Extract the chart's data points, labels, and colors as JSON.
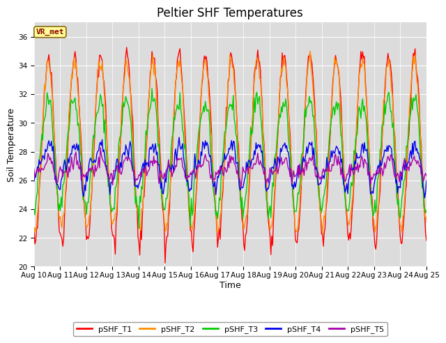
{
  "title": "Peltier SHF Temperatures",
  "xlabel": "Time",
  "ylabel": "Soil Temperature",
  "ylim": [
    20,
    37
  ],
  "yticks": [
    20,
    22,
    24,
    26,
    28,
    30,
    32,
    34,
    36
  ],
  "background_color": "#dcdcdc",
  "figure_bg": "#ffffff",
  "annotation_text": "VR_met",
  "annotation_bg": "#ffff99",
  "annotation_border": "#8b6914",
  "annotation_text_color": "#8b0000",
  "series": [
    {
      "label": "pSHF_T1",
      "color": "#ff0000"
    },
    {
      "label": "pSHF_T2",
      "color": "#ff8c00"
    },
    {
      "label": "pSHF_T3",
      "color": "#00cc00"
    },
    {
      "label": "pSHF_T4",
      "color": "#0000ee"
    },
    {
      "label": "pSHF_T5",
      "color": "#aa00aa"
    }
  ],
  "xtick_labels": [
    "Aug 10",
    "Aug 11",
    "Aug 12",
    "Aug 13",
    "Aug 14",
    "Aug 15",
    "Aug 16",
    "Aug 17",
    "Aug 18",
    "Aug 19",
    "Aug 20",
    "Aug 21",
    "Aug 22",
    "Aug 23",
    "Aug 24",
    "Aug 25"
  ],
  "title_fontsize": 12,
  "axis_fontsize": 9,
  "tick_fontsize": 7.5,
  "legend_fontsize": 8,
  "grid_color": "#ffffff",
  "linewidth": 1.0
}
